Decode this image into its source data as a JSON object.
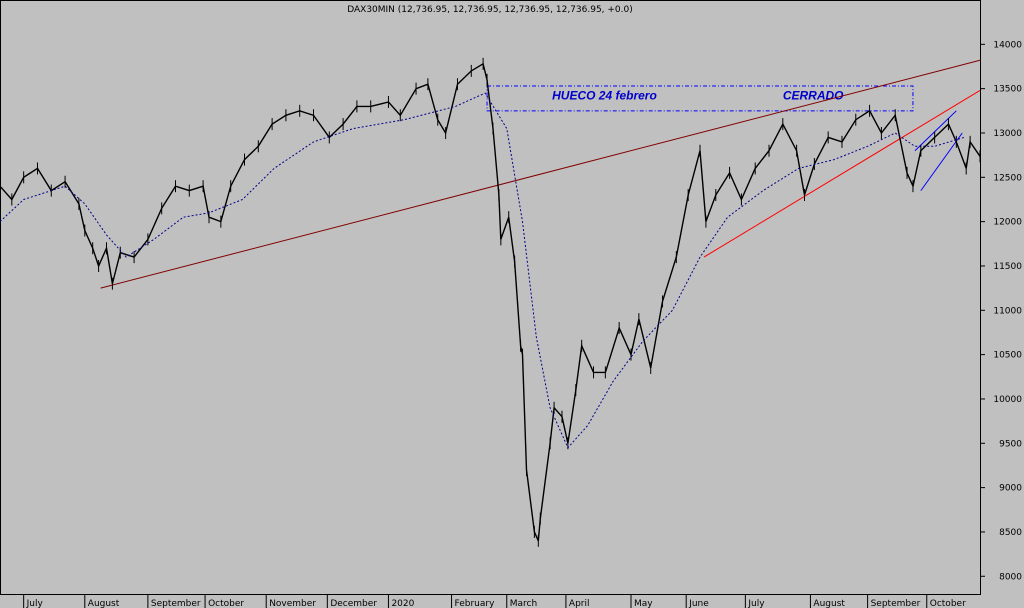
{
  "chart_data": {
    "type": "line",
    "title": "DAX30MIN (12,736.95, 12,736.95, 12,736.95, 12,736.95, +0.0)",
    "ylim": [
      7800,
      14500
    ],
    "y_ticks": [
      8000,
      8500,
      9000,
      9500,
      10000,
      10500,
      11000,
      11500,
      12000,
      12500,
      13000,
      13500,
      14000
    ],
    "x_range": [
      "2019-06-19",
      "2020-10-28"
    ],
    "x_ticks": [
      {
        "label": "July",
        "date": "2019-07-01"
      },
      {
        "label": "August",
        "date": "2019-08-01"
      },
      {
        "label": "September",
        "date": "2019-09-02"
      },
      {
        "label": "October",
        "date": "2019-10-01"
      },
      {
        "label": "November",
        "date": "2019-11-01"
      },
      {
        "label": "December",
        "date": "2019-12-02"
      },
      {
        "label": "2020",
        "date": "2020-01-02"
      },
      {
        "label": "February",
        "date": "2020-02-03"
      },
      {
        "label": "March",
        "date": "2020-03-02"
      },
      {
        "label": "April",
        "date": "2020-04-01"
      },
      {
        "label": "May",
        "date": "2020-05-04"
      },
      {
        "label": "June",
        "date": "2020-06-01"
      },
      {
        "label": "July",
        "date": "2020-07-01"
      },
      {
        "label": "August",
        "date": "2020-08-03"
      },
      {
        "label": "September",
        "date": "2020-09-01"
      },
      {
        "label": "October",
        "date": "2020-10-01"
      }
    ],
    "series": [
      {
        "color": "#000000",
        "points": [
          [
            "2019-06-19",
            12400
          ],
          [
            "2019-06-25",
            12250
          ],
          [
            "2019-07-01",
            12500
          ],
          [
            "2019-07-08",
            12600
          ],
          [
            "2019-07-15",
            12350
          ],
          [
            "2019-07-22",
            12450
          ],
          [
            "2019-07-29",
            12200
          ],
          [
            "2019-08-01",
            11900
          ],
          [
            "2019-08-05",
            11700
          ],
          [
            "2019-08-08",
            11500
          ],
          [
            "2019-08-12",
            11700
          ],
          [
            "2019-08-15",
            11300
          ],
          [
            "2019-08-19",
            11650
          ],
          [
            "2019-08-26",
            11600
          ],
          [
            "2019-09-02",
            11800
          ],
          [
            "2019-09-09",
            12150
          ],
          [
            "2019-09-16",
            12400
          ],
          [
            "2019-09-23",
            12350
          ],
          [
            "2019-09-30",
            12400
          ],
          [
            "2019-10-03",
            12050
          ],
          [
            "2019-10-09",
            12000
          ],
          [
            "2019-10-14",
            12400
          ],
          [
            "2019-10-21",
            12700
          ],
          [
            "2019-10-28",
            12850
          ],
          [
            "2019-11-04",
            13100
          ],
          [
            "2019-11-11",
            13200
          ],
          [
            "2019-11-18",
            13250
          ],
          [
            "2019-11-25",
            13200
          ],
          [
            "2019-12-03",
            12950
          ],
          [
            "2019-12-10",
            13100
          ],
          [
            "2019-12-17",
            13300
          ],
          [
            "2019-12-24",
            13300
          ],
          [
            "2020-01-02",
            13350
          ],
          [
            "2020-01-08",
            13200
          ],
          [
            "2020-01-16",
            13500
          ],
          [
            "2020-01-22",
            13550
          ],
          [
            "2020-01-27",
            13150
          ],
          [
            "2020-01-31",
            13000
          ],
          [
            "2020-02-06",
            13550
          ],
          [
            "2020-02-13",
            13700
          ],
          [
            "2020-02-19",
            13780
          ],
          [
            "2020-02-21",
            13600
          ],
          [
            "2020-02-24",
            13050
          ],
          [
            "2020-02-27",
            12300
          ],
          [
            "2020-02-28",
            11800
          ],
          [
            "2020-03-03",
            12050
          ],
          [
            "2020-03-06",
            11550
          ],
          [
            "2020-03-09",
            10600
          ],
          [
            "2020-03-10",
            10500
          ],
          [
            "2020-03-12",
            9200
          ],
          [
            "2020-03-16",
            8500
          ],
          [
            "2020-03-18",
            8400
          ],
          [
            "2020-03-19",
            8650
          ],
          [
            "2020-03-24",
            9500
          ],
          [
            "2020-03-26",
            9900
          ],
          [
            "2020-03-30",
            9800
          ],
          [
            "2020-04-02",
            9500
          ],
          [
            "2020-04-06",
            10100
          ],
          [
            "2020-04-09",
            10600
          ],
          [
            "2020-04-15",
            10300
          ],
          [
            "2020-04-21",
            10300
          ],
          [
            "2020-04-28",
            10800
          ],
          [
            "2020-05-04",
            10500
          ],
          [
            "2020-05-08",
            10900
          ],
          [
            "2020-05-14",
            10350
          ],
          [
            "2020-05-20",
            11100
          ],
          [
            "2020-05-27",
            11600
          ],
          [
            "2020-06-02",
            12300
          ],
          [
            "2020-06-08",
            12800
          ],
          [
            "2020-06-11",
            12000
          ],
          [
            "2020-06-16",
            12300
          ],
          [
            "2020-06-23",
            12550
          ],
          [
            "2020-06-29",
            12250
          ],
          [
            "2020-07-06",
            12600
          ],
          [
            "2020-07-13",
            12800
          ],
          [
            "2020-07-20",
            13100
          ],
          [
            "2020-07-27",
            12800
          ],
          [
            "2020-07-31",
            12300
          ],
          [
            "2020-08-05",
            12650
          ],
          [
            "2020-08-12",
            12950
          ],
          [
            "2020-08-19",
            12900
          ],
          [
            "2020-08-26",
            13150
          ],
          [
            "2020-09-02",
            13250
          ],
          [
            "2020-09-08",
            13000
          ],
          [
            "2020-09-15",
            13200
          ],
          [
            "2020-09-21",
            12550
          ],
          [
            "2020-09-24",
            12400
          ],
          [
            "2020-09-28",
            12800
          ],
          [
            "2020-10-05",
            12950
          ],
          [
            "2020-10-12",
            13100
          ],
          [
            "2020-10-16",
            12900
          ],
          [
            "2020-10-21",
            12600
          ],
          [
            "2020-10-23",
            12900
          ],
          [
            "2020-10-28",
            12737
          ]
        ]
      },
      {
        "color": "#00008b",
        "dashed": true,
        "points": [
          [
            "2019-06-19",
            12000
          ],
          [
            "2019-07-01",
            12250
          ],
          [
            "2019-07-22",
            12400
          ],
          [
            "2019-08-01",
            12200
          ],
          [
            "2019-08-12",
            11850
          ],
          [
            "2019-08-22",
            11600
          ],
          [
            "2019-09-05",
            11800
          ],
          [
            "2019-09-20",
            12050
          ],
          [
            "2019-10-03",
            12100
          ],
          [
            "2019-10-20",
            12250
          ],
          [
            "2019-11-05",
            12600
          ],
          [
            "2019-11-25",
            12900
          ],
          [
            "2019-12-15",
            13050
          ],
          [
            "2020-01-10",
            13150
          ],
          [
            "2020-02-05",
            13300
          ],
          [
            "2020-02-20",
            13450
          ],
          [
            "2020-03-02",
            13050
          ],
          [
            "2020-03-10",
            12000
          ],
          [
            "2020-03-17",
            10700
          ],
          [
            "2020-03-24",
            9900
          ],
          [
            "2020-04-02",
            9450
          ],
          [
            "2020-04-12",
            9700
          ],
          [
            "2020-04-25",
            10200
          ],
          [
            "2020-05-10",
            10650
          ],
          [
            "2020-05-25",
            11000
          ],
          [
            "2020-06-08",
            11600
          ],
          [
            "2020-06-22",
            12050
          ],
          [
            "2020-07-10",
            12350
          ],
          [
            "2020-07-28",
            12600
          ],
          [
            "2020-08-15",
            12700
          ],
          [
            "2020-09-01",
            12850
          ],
          [
            "2020-09-15",
            13000
          ],
          [
            "2020-09-25",
            12850
          ],
          [
            "2020-10-05",
            12850
          ],
          [
            "2020-10-20",
            12950
          ]
        ]
      }
    ],
    "trendlines": [
      {
        "color": "#800000",
        "from": [
          "2019-08-09",
          11250
        ],
        "to": [
          "2020-10-28",
          13820
        ]
      },
      {
        "color": "#ff0000",
        "from": [
          "2020-06-10",
          11600
        ],
        "to": [
          "2020-10-28",
          13480
        ]
      },
      {
        "color": "#0000ff",
        "from": [
          "2020-09-28",
          12350
        ],
        "to": [
          "2020-10-19",
          13000
        ]
      },
      {
        "color": "#0000ff",
        "from": [
          "2020-09-25",
          12800
        ],
        "to": [
          "2020-10-16",
          13250
        ]
      }
    ],
    "gap_box": {
      "color": "#0000ff",
      "from": [
        "2020-02-21",
        13530
      ],
      "to": [
        "2020-09-24",
        13250
      ]
    },
    "annotations": [
      {
        "text": "HUECO 24 febrero",
        "color": "#0000cd",
        "at": [
          "2020-03-25",
          13400
        ]
      },
      {
        "text": "CERRADO",
        "color": "#0000cd",
        "at": [
          "2020-07-20",
          13400
        ]
      }
    ],
    "grid": false,
    "legend": "none"
  }
}
